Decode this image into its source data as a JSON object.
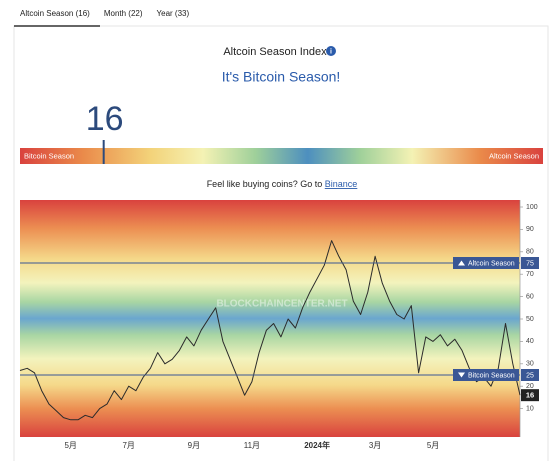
{
  "tabs": [
    "Altcoin Season (16)",
    "Month (22)",
    "Year (33)"
  ],
  "header": {
    "title": "Altcoin Season Index",
    "subtitle": "It's Bitcoin Season!"
  },
  "gauge": {
    "value": 16,
    "range": [
      0,
      100
    ],
    "left_label": "Bitcoin Season",
    "right_label": "Altcoin Season"
  },
  "promo": {
    "text": "Feel like buying coins? Go to",
    "link": "Binance"
  },
  "chart_data": {
    "type": "line",
    "watermark": "BLOCKCHAINCENTER.NET",
    "categories": [
      null,
      null,
      null,
      null,
      null,
      null,
      null,
      "5月",
      null,
      null,
      null,
      null,
      null,
      null,
      null,
      "7月",
      null,
      null,
      null,
      null,
      null,
      null,
      null,
      null,
      "9月",
      null,
      null,
      null,
      null,
      null,
      null,
      null,
      "11月",
      null,
      null,
      null,
      null,
      null,
      null,
      null,
      null,
      "2024年",
      null,
      null,
      null,
      null,
      null,
      null,
      null,
      "3月",
      null,
      null,
      null,
      null,
      null,
      null,
      null,
      "5月",
      null,
      null,
      null,
      null,
      null,
      null,
      null,
      null,
      null,
      null,
      null,
      null
    ],
    "series": [
      {
        "name": "Altcoin Season Index",
        "color": "#2b2b2b",
        "values": [
          27,
          28,
          26,
          18,
          12,
          9,
          6,
          5,
          5,
          7,
          6,
          10,
          12,
          18,
          14,
          20,
          18,
          24,
          28,
          35,
          30,
          32,
          36,
          42,
          38,
          45,
          50,
          55,
          40,
          32,
          24,
          16,
          22,
          35,
          45,
          48,
          42,
          50,
          46,
          55,
          62,
          68,
          74,
          85,
          78,
          72,
          58,
          52,
          62,
          78,
          66,
          58,
          52,
          50,
          56,
          26,
          42,
          40,
          43,
          38,
          41,
          36,
          28,
          22,
          24,
          20,
          28,
          48,
          30,
          16
        ]
      }
    ],
    "ylim": [
      0,
      100
    ],
    "yticks": [
      10,
      20,
      30,
      40,
      50,
      60,
      70,
      80,
      90,
      100
    ],
    "reference_lines": [
      {
        "value": 75,
        "label": "Altcoin Season"
      },
      {
        "value": 25,
        "label": "Bitcoin Season"
      }
    ],
    "reference_color": "#3a5795"
  }
}
